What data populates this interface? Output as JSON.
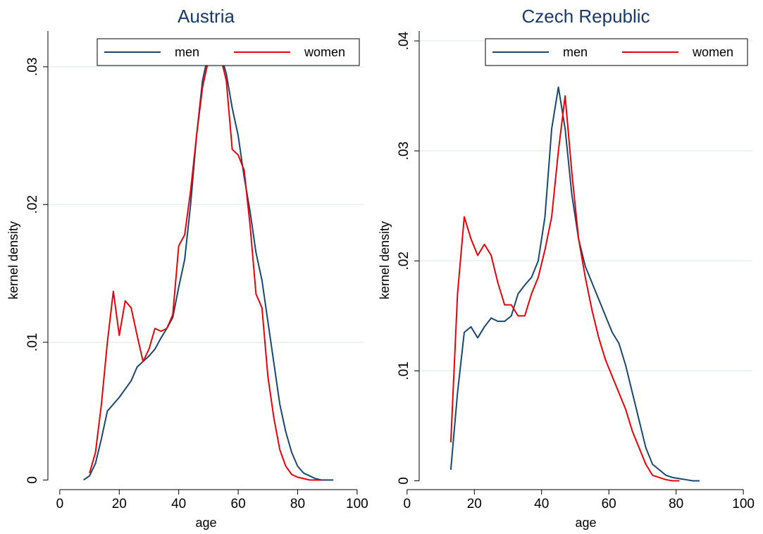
{
  "chart_data": [
    {
      "type": "line",
      "title": "Austria",
      "x_label": "age",
      "y_label": "kernel density",
      "x": [
        8,
        10,
        12,
        14,
        16,
        18,
        20,
        22,
        24,
        26,
        28,
        30,
        32,
        34,
        36,
        38,
        40,
        42,
        44,
        46,
        48,
        50,
        52,
        54,
        56,
        58,
        60,
        62,
        64,
        66,
        68,
        70,
        72,
        74,
        76,
        78,
        80,
        82,
        84,
        86,
        88,
        90,
        92
      ],
      "series": [
        {
          "name": "men",
          "color": "#1a476f",
          "values": [
            0.0,
            0.0003,
            0.0012,
            0.003,
            0.005,
            0.0055,
            0.006,
            0.0066,
            0.0072,
            0.0082,
            0.0086,
            0.009,
            0.0095,
            0.0103,
            0.011,
            0.0118,
            0.014,
            0.016,
            0.02,
            0.025,
            0.029,
            0.031,
            0.0312,
            0.031,
            0.0295,
            0.027,
            0.025,
            0.022,
            0.0195,
            0.0165,
            0.0145,
            0.0115,
            0.0085,
            0.0055,
            0.0035,
            0.002,
            0.001,
            0.0005,
            0.0003,
            0.0001,
            0.0,
            0.0,
            0.0
          ]
        },
        {
          "name": "women",
          "color": "#e8000b",
          "values": [
            null,
            0.0005,
            0.002,
            0.0055,
            0.01,
            0.0137,
            0.0105,
            0.013,
            0.0125,
            0.0105,
            0.0086,
            0.0095,
            0.011,
            0.0108,
            0.011,
            0.012,
            0.017,
            0.0178,
            0.021,
            0.025,
            0.0285,
            0.0305,
            0.031,
            0.0308,
            0.029,
            0.024,
            0.0236,
            0.0225,
            0.0185,
            0.0135,
            0.0125,
            0.0075,
            0.0045,
            0.0022,
            0.001,
            0.0004,
            0.0002,
            0.0001,
            0.0,
            0.0,
            0.0,
            null,
            null
          ]
        }
      ],
      "xlim": [
        -4,
        102.4
      ],
      "xticks": [
        0,
        20,
        40,
        60,
        80,
        100
      ],
      "ylim": [
        -0.0007,
        0.0326
      ],
      "yticks": [
        0,
        {
          "value": 0.01,
          "label": ".01"
        },
        {
          "value": 0.02,
          "label": ".02"
        },
        {
          "value": 0.03,
          "label": ".03"
        }
      ],
      "grid": true,
      "legend": "top-right"
    },
    {
      "type": "line",
      "title": "Czech Republic",
      "x_label": "age",
      "y_label": "kernel density",
      "x": [
        13,
        15,
        17,
        19,
        21,
        23,
        25,
        27,
        29,
        31,
        33,
        35,
        37,
        39,
        41,
        43,
        45,
        47,
        49,
        51,
        53,
        55,
        57,
        59,
        61,
        63,
        65,
        67,
        69,
        71,
        73,
        75,
        77,
        79,
        81,
        83,
        85,
        87
      ],
      "series": [
        {
          "name": "men",
          "color": "#1a476f",
          "values": [
            0.001,
            0.008,
            0.0135,
            0.014,
            0.013,
            0.014,
            0.0148,
            0.0145,
            0.0145,
            0.015,
            0.017,
            0.0178,
            0.0185,
            0.02,
            0.024,
            0.032,
            0.0358,
            0.032,
            0.026,
            0.022,
            0.0195,
            0.018,
            0.0165,
            0.015,
            0.0135,
            0.0125,
            0.0105,
            0.008,
            0.0055,
            0.003,
            0.0015,
            0.001,
            0.0005,
            0.0003,
            0.0002,
            0.0001,
            0.0,
            0.0
          ]
        },
        {
          "name": "women",
          "color": "#e8000b",
          "values": [
            0.0035,
            0.017,
            0.024,
            0.022,
            0.0205,
            0.0215,
            0.0205,
            0.018,
            0.016,
            0.016,
            0.015,
            0.015,
            0.017,
            0.0185,
            0.021,
            0.024,
            0.03,
            0.035,
            0.028,
            0.022,
            0.0185,
            0.0155,
            0.013,
            0.011,
            0.0095,
            0.008,
            0.0065,
            0.0045,
            0.003,
            0.0015,
            0.0005,
            0.0003,
            0.0001,
            0.0,
            0.0,
            null,
            null,
            null
          ]
        }
      ],
      "xlim": [
        3.6,
        102.7
      ],
      "xticks": [
        0,
        20,
        40,
        60,
        80,
        100
      ],
      "ylim": [
        -0.0008,
        0.0409
      ],
      "yticks": [
        0,
        {
          "value": 0.01,
          "label": ".01"
        },
        {
          "value": 0.02,
          "label": ".02"
        },
        {
          "value": 0.03,
          "label": ".03"
        },
        {
          "value": 0.04,
          "label": ".04"
        }
      ],
      "grid": true,
      "legend": "top-right"
    }
  ]
}
